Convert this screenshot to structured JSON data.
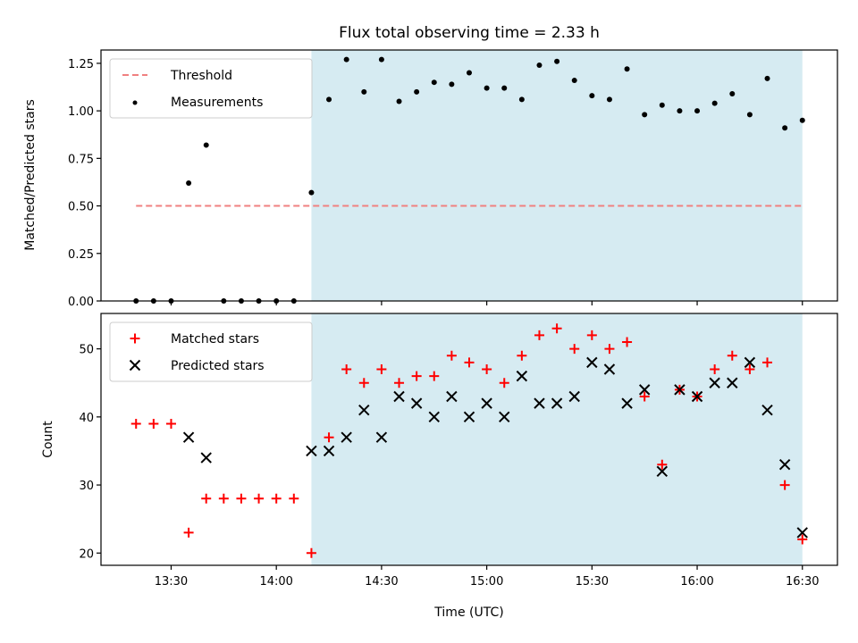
{
  "chart_data": [
    {
      "type": "scatter",
      "title": "Flux total observing time = 2.33 h",
      "xlabel": "",
      "ylabel": "Matched/Predicted stars",
      "ylim": [
        0,
        1.32
      ],
      "yticks": [
        0.0,
        0.25,
        0.5,
        0.75,
        1.0,
        1.25
      ],
      "ytick_labels": [
        "0.00",
        "0.25",
        "0.50",
        "0.75",
        "1.00",
        "1.25"
      ],
      "xlim": [
        "13:10",
        "16:40"
      ],
      "x_tick_labels_shown": false,
      "shaded_region": {
        "start": "14:10",
        "end": "16:30",
        "color": "#add8e6"
      },
      "threshold": {
        "name": "Threshold",
        "value": 0.5,
        "start": "13:20",
        "end": "16:30",
        "color": "#f08080",
        "style": "dashed"
      },
      "series": [
        {
          "name": "Measurements",
          "color": "#000000",
          "marker": "dot",
          "x": [
            "13:20",
            "13:25",
            "13:30",
            "13:35",
            "13:40",
            "13:45",
            "13:50",
            "13:55",
            "14:00",
            "14:05",
            "14:10",
            "14:15",
            "14:20",
            "14:25",
            "14:30",
            "14:35",
            "14:40",
            "14:45",
            "14:50",
            "14:55",
            "15:00",
            "15:05",
            "15:10",
            "15:15",
            "15:20",
            "15:25",
            "15:30",
            "15:35",
            "15:40",
            "15:45",
            "15:50",
            "15:55",
            "16:00",
            "16:05",
            "16:10",
            "16:15",
            "16:20",
            "16:25",
            "16:30"
          ],
          "values": [
            0,
            0,
            0,
            0.62,
            0.82,
            0,
            0,
            0,
            0,
            0,
            0.57,
            1.06,
            1.27,
            1.1,
            1.27,
            1.05,
            1.1,
            1.15,
            1.14,
            1.2,
            1.12,
            1.12,
            1.06,
            1.24,
            1.26,
            1.16,
            1.08,
            1.06,
            1.22,
            0.98,
            1.03,
            1.0,
            1.0,
            1.04,
            1.09,
            0.98,
            1.17,
            0.91,
            0.95
          ]
        }
      ],
      "grid": false,
      "legend": "upper-left"
    },
    {
      "type": "scatter",
      "title": "",
      "xlabel": "Time (UTC)",
      "ylabel": "Count",
      "ylim": [
        18.2,
        55.2
      ],
      "yticks": [
        20,
        30,
        40,
        50
      ],
      "ytick_labels": [
        "20",
        "30",
        "40",
        "50"
      ],
      "xlim": [
        "13:10",
        "16:40"
      ],
      "xticks": [
        "13:30",
        "14:00",
        "14:30",
        "15:00",
        "15:30",
        "16:00",
        "16:30"
      ],
      "shaded_region": {
        "start": "14:10",
        "end": "16:30",
        "color": "#add8e6"
      },
      "series": [
        {
          "name": "Matched stars",
          "color": "#ff0000",
          "marker": "plus",
          "x": [
            "13:20",
            "13:25",
            "13:30",
            "13:35",
            "13:40",
            "13:45",
            "13:50",
            "13:55",
            "14:00",
            "14:05",
            "14:10",
            "14:15",
            "14:20",
            "14:25",
            "14:30",
            "14:35",
            "14:40",
            "14:45",
            "14:50",
            "14:55",
            "15:00",
            "15:05",
            "15:10",
            "15:15",
            "15:20",
            "15:25",
            "15:30",
            "15:35",
            "15:40",
            "15:45",
            "15:50",
            "15:55",
            "16:00",
            "16:05",
            "16:10",
            "16:15",
            "16:20",
            "16:25",
            "16:30"
          ],
          "values": [
            39,
            39,
            39,
            23,
            28,
            28,
            28,
            28,
            28,
            28,
            20,
            37,
            47,
            45,
            47,
            45,
            46,
            46,
            49,
            48,
            47,
            45,
            49,
            52,
            53,
            50,
            52,
            50,
            51,
            43,
            33,
            44,
            43,
            47,
            49,
            47,
            48,
            30,
            22
          ]
        },
        {
          "name": "Predicted stars",
          "color": "#000000",
          "marker": "x",
          "x": [
            "13:35",
            "13:40",
            "14:10",
            "14:15",
            "14:20",
            "14:25",
            "14:30",
            "14:35",
            "14:40",
            "14:45",
            "14:50",
            "14:55",
            "15:00",
            "15:05",
            "15:10",
            "15:15",
            "15:20",
            "15:25",
            "15:30",
            "15:35",
            "15:40",
            "15:45",
            "15:50",
            "15:55",
            "16:00",
            "16:05",
            "16:10",
            "16:15",
            "16:20",
            "16:25",
            "16:30"
          ],
          "values": [
            37,
            34,
            35,
            35,
            37,
            41,
            37,
            43,
            42,
            40,
            43,
            40,
            42,
            40,
            46,
            42,
            42,
            43,
            48,
            47,
            42,
            44,
            32,
            44,
            43,
            45,
            45,
            48,
            41,
            33,
            23
          ]
        }
      ],
      "grid": false,
      "legend": "upper-left"
    }
  ]
}
